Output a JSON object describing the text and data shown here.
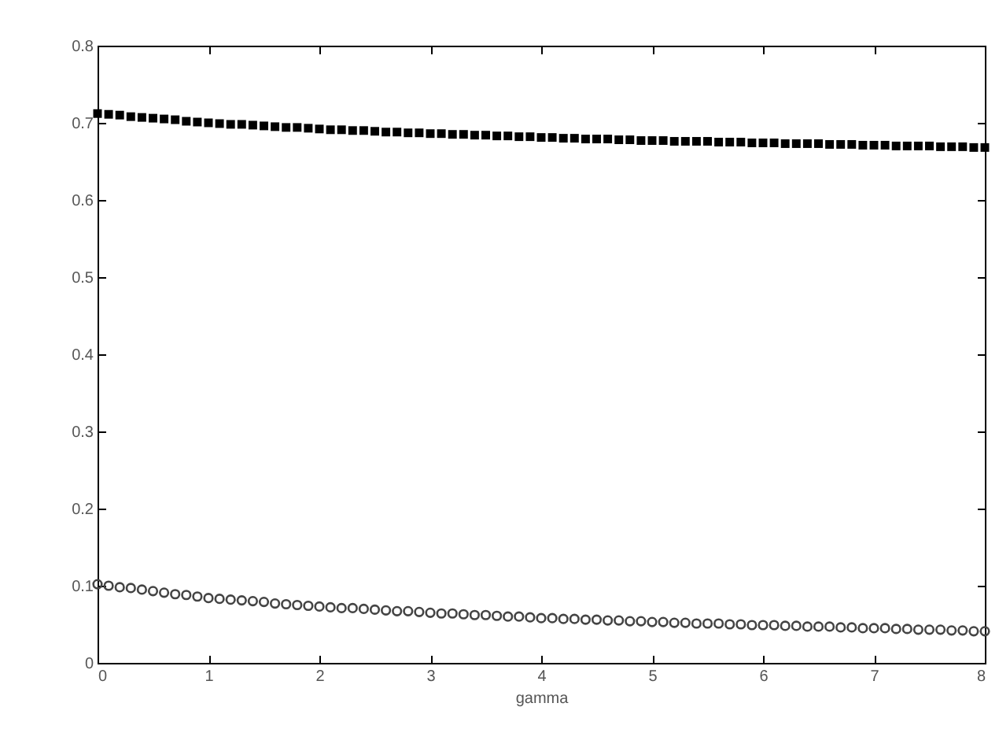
{
  "chart_data": {
    "type": "scatter",
    "xlabel": "gamma",
    "x": [
      0,
      0.1,
      0.2,
      0.3,
      0.4,
      0.5,
      0.6,
      0.7,
      0.8,
      0.9,
      1,
      1.1,
      1.2,
      1.3,
      1.4,
      1.5,
      1.6,
      1.7,
      1.8,
      1.9,
      2,
      2.1,
      2.2,
      2.3,
      2.4,
      2.5,
      2.6,
      2.7,
      2.8,
      2.9,
      3,
      3.1,
      3.2,
      3.3,
      3.4,
      3.5,
      3.6,
      3.7,
      3.8,
      3.9,
      4,
      4.1,
      4.2,
      4.3,
      4.4,
      4.5,
      4.6,
      4.7,
      4.8,
      4.9,
      5,
      5.1,
      5.2,
      5.3,
      5.4,
      5.5,
      5.6,
      5.7,
      5.8,
      5.9,
      6,
      6.1,
      6.2,
      6.3,
      6.4,
      6.5,
      6.6,
      6.7,
      6.8,
      6.9,
      7,
      7.1,
      7.2,
      7.3,
      7.4,
      7.5,
      7.6,
      7.7,
      7.8,
      7.9,
      8
    ],
    "series": [
      {
        "color": "#000000",
        "marker": "square",
        "values": [
          0.712,
          0.711,
          0.71,
          0.708,
          0.707,
          0.706,
          0.705,
          0.704,
          0.702,
          0.701,
          0.7,
          0.699,
          0.698,
          0.698,
          0.697,
          0.696,
          0.695,
          0.694,
          0.694,
          0.693,
          0.692,
          0.691,
          0.691,
          0.69,
          0.69,
          0.689,
          0.688,
          0.688,
          0.687,
          0.687,
          0.686,
          0.686,
          0.685,
          0.685,
          0.684,
          0.684,
          0.683,
          0.683,
          0.682,
          0.682,
          0.681,
          0.681,
          0.68,
          0.68,
          0.679,
          0.679,
          0.679,
          0.678,
          0.678,
          0.677,
          0.677,
          0.677,
          0.676,
          0.676,
          0.676,
          0.676,
          0.675,
          0.675,
          0.675,
          0.674,
          0.674,
          0.674,
          0.673,
          0.673,
          0.673,
          0.673,
          0.672,
          0.672,
          0.672,
          0.671,
          0.671,
          0.671,
          0.67,
          0.67,
          0.67,
          0.67,
          0.669,
          0.669,
          0.669,
          0.668,
          0.668
        ]
      },
      {
        "color": "#444444",
        "marker": "circle",
        "values": [
          0.102,
          0.1,
          0.098,
          0.097,
          0.095,
          0.093,
          0.091,
          0.089,
          0.088,
          0.086,
          0.084,
          0.083,
          0.082,
          0.081,
          0.08,
          0.079,
          0.077,
          0.076,
          0.075,
          0.074,
          0.073,
          0.072,
          0.071,
          0.071,
          0.07,
          0.069,
          0.068,
          0.067,
          0.067,
          0.066,
          0.065,
          0.064,
          0.064,
          0.063,
          0.062,
          0.062,
          0.061,
          0.06,
          0.06,
          0.059,
          0.058,
          0.058,
          0.057,
          0.057,
          0.056,
          0.056,
          0.055,
          0.055,
          0.054,
          0.054,
          0.053,
          0.053,
          0.052,
          0.052,
          0.051,
          0.051,
          0.051,
          0.05,
          0.05,
          0.049,
          0.049,
          0.049,
          0.048,
          0.048,
          0.047,
          0.047,
          0.047,
          0.046,
          0.046,
          0.045,
          0.045,
          0.045,
          0.044,
          0.044,
          0.043,
          0.043,
          0.043,
          0.042,
          0.042,
          0.041,
          0.041
        ]
      }
    ],
    "xlim": [
      0,
      8
    ],
    "xticks": [
      0,
      1,
      2,
      3,
      4,
      5,
      6,
      7,
      8
    ],
    "ylim": [
      0,
      0.8
    ],
    "yticks": [
      0,
      0.1,
      0.2,
      0.3,
      0.4,
      0.5,
      0.6,
      0.7,
      0.8
    ]
  }
}
